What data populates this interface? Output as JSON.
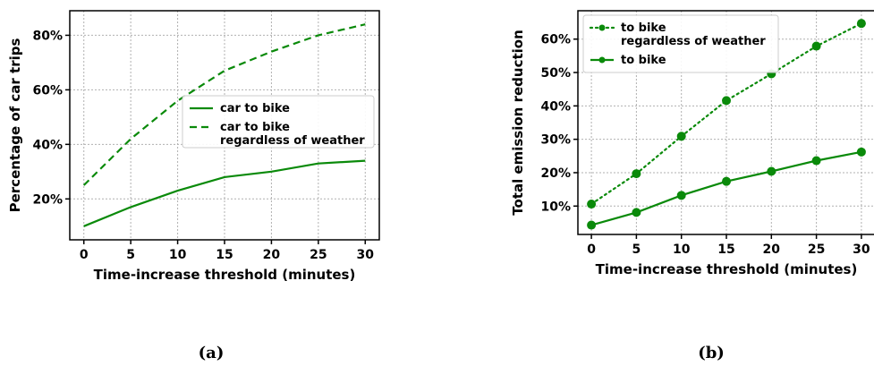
{
  "colors": {
    "series": "#0a8a0a",
    "grid": "#b0b0b0"
  },
  "panel_labels": [
    "(a)",
    "(b)"
  ],
  "chart_data": [
    {
      "type": "line",
      "xlabel": "Time-increase threshold (minutes)",
      "ylabel": "Percentage of car trips",
      "x": [
        0,
        5,
        10,
        15,
        20,
        25,
        30
      ],
      "xlim": [
        -1.5,
        31.5
      ],
      "ylim": [
        0.05,
        0.89
      ],
      "yticks": [
        0.2,
        0.4,
        0.6,
        0.8
      ],
      "ytick_labels": [
        "20%",
        "40%",
        "60%",
        "80%"
      ],
      "xticks": [
        0,
        5,
        10,
        15,
        20,
        25,
        30
      ],
      "xtick_labels": [
        "0",
        "5",
        "10",
        "15",
        "20",
        "25",
        "30"
      ],
      "grid": true,
      "legend_position": "center-right",
      "series": [
        {
          "name": "car to bike",
          "style": "solid",
          "markers": false,
          "values": [
            0.1,
            0.17,
            0.23,
            0.28,
            0.3,
            0.33,
            0.34
          ]
        },
        {
          "name": "car to bike\nregardless of weather",
          "style": "dashed",
          "markers": false,
          "values": [
            0.25,
            0.42,
            0.56,
            0.67,
            0.74,
            0.8,
            0.84
          ]
        }
      ]
    },
    {
      "type": "line",
      "xlabel": "Time-increase threshold (minutes)",
      "ylabel": "Total emission reduction",
      "x": [
        0,
        5,
        10,
        15,
        20,
        25,
        30
      ],
      "xlim": [
        -1.5,
        31.5
      ],
      "ylim": [
        0.015,
        0.685
      ],
      "yticks": [
        0.1,
        0.2,
        0.3,
        0.4,
        0.5,
        0.6
      ],
      "ytick_labels": [
        "10%",
        "20%",
        "30%",
        "40%",
        "50%",
        "60%"
      ],
      "xticks": [
        0,
        5,
        10,
        15,
        20,
        25,
        30
      ],
      "xtick_labels": [
        "0",
        "5",
        "10",
        "15",
        "20",
        "25",
        "30"
      ],
      "grid": true,
      "legend_position": "upper-left",
      "series": [
        {
          "name": "to bike\nregardless of weather",
          "style": "dotted",
          "markers": true,
          "values": [
            0.106,
            0.197,
            0.309,
            0.416,
            0.496,
            0.579,
            0.647
          ]
        },
        {
          "name": "to bike",
          "style": "solid",
          "markers": true,
          "values": [
            0.043,
            0.081,
            0.132,
            0.174,
            0.204,
            0.236,
            0.262
          ]
        }
      ]
    }
  ]
}
